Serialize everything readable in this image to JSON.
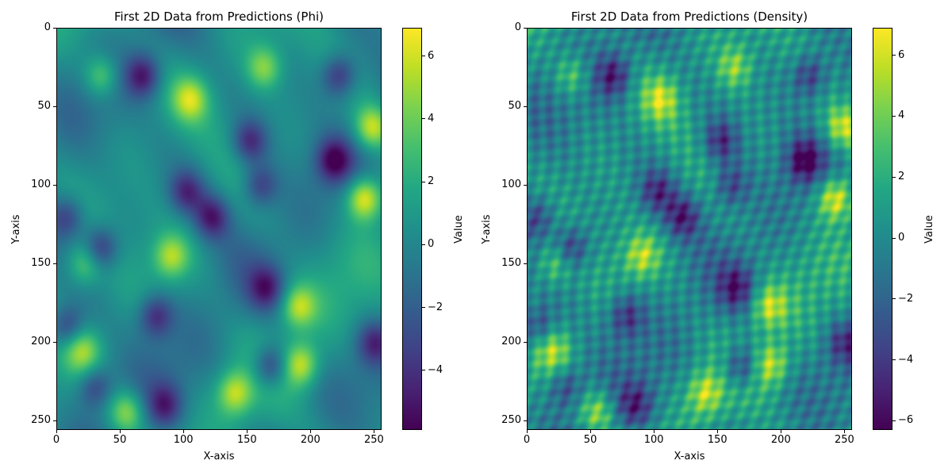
{
  "chart_data": [
    {
      "type": "heatmap",
      "title": "First 2D Data from Predictions (Phi)",
      "xlabel": "X-axis",
      "ylabel": "Y-axis",
      "xlim": [
        0,
        256
      ],
      "ylim": [
        256,
        0
      ],
      "xticks": [
        0,
        50,
        100,
        150,
        200,
        250
      ],
      "yticks": [
        0,
        50,
        100,
        150,
        200,
        250
      ],
      "colormap": "viridis",
      "colorbar": {
        "label": "Value",
        "range": [
          -5.9,
          6.9
        ],
        "ticks": [
          -4,
          -2,
          0,
          2,
          4,
          6
        ]
      },
      "grid": false,
      "texture": "smooth",
      "features": [
        {
          "x": 242,
          "y": 108,
          "value": 6.8
        },
        {
          "x": 248,
          "y": 63,
          "value": 5.5
        },
        {
          "x": 190,
          "y": 177,
          "value": 4.8
        },
        {
          "x": 105,
          "y": 45,
          "value": 4.5
        },
        {
          "x": 140,
          "y": 232,
          "value": 4.7
        },
        {
          "x": 192,
          "y": 214,
          "value": 5.2
        },
        {
          "x": 55,
          "y": 244,
          "value": 4.6
        },
        {
          "x": 90,
          "y": 145,
          "value": 4.3
        },
        {
          "x": 22,
          "y": 150,
          "value": 4.0
        },
        {
          "x": 163,
          "y": 25,
          "value": 4.0
        },
        {
          "x": 35,
          "y": 30,
          "value": 4.0
        },
        {
          "x": 20,
          "y": 205,
          "value": 3.8
        },
        {
          "x": 218,
          "y": 84,
          "value": -5.3
        },
        {
          "x": 122,
          "y": 120,
          "value": -4.8
        },
        {
          "x": 68,
          "y": 30,
          "value": -5.0
        },
        {
          "x": 222,
          "y": 30,
          "value": -4.7
        },
        {
          "x": 152,
          "y": 72,
          "value": -4.5
        },
        {
          "x": 168,
          "y": 215,
          "value": -5.0
        },
        {
          "x": 34,
          "y": 140,
          "value": -4.8
        },
        {
          "x": 78,
          "y": 183,
          "value": -4.5
        },
        {
          "x": 102,
          "y": 104,
          "value": -4.2
        },
        {
          "x": 160,
          "y": 100,
          "value": -4.0
        },
        {
          "x": 30,
          "y": 228,
          "value": -4.0
        },
        {
          "x": 8,
          "y": 190,
          "value": -4.2
        },
        {
          "x": 250,
          "y": 200,
          "value": -4.0
        },
        {
          "x": 165,
          "y": 165,
          "value": -4.0
        },
        {
          "x": 8,
          "y": 120,
          "value": -3.8
        },
        {
          "x": 85,
          "y": 240,
          "value": -4.0
        }
      ]
    },
    {
      "type": "heatmap",
      "title": "First 2D Data from Predictions (Density)",
      "xlabel": "X-axis",
      "ylabel": "Y-axis",
      "xlim": [
        0,
        256
      ],
      "ylim": [
        256,
        0
      ],
      "xticks": [
        0,
        50,
        100,
        150,
        200,
        250
      ],
      "yticks": [
        0,
        50,
        100,
        150,
        200,
        250
      ],
      "colormap": "viridis",
      "colorbar": {
        "label": "Value",
        "range": [
          -6.3,
          6.9
        ],
        "ticks": [
          -6,
          -4,
          -2,
          0,
          2,
          4,
          6
        ]
      },
      "grid": false,
      "texture": "streaky",
      "features": [
        {
          "x": 242,
          "y": 108,
          "value": 6.7
        },
        {
          "x": 248,
          "y": 63,
          "value": 5.6
        },
        {
          "x": 190,
          "y": 177,
          "value": 4.9
        },
        {
          "x": 105,
          "y": 45,
          "value": 4.4
        },
        {
          "x": 140,
          "y": 232,
          "value": 4.8
        },
        {
          "x": 192,
          "y": 214,
          "value": 5.0
        },
        {
          "x": 55,
          "y": 244,
          "value": 4.5
        },
        {
          "x": 90,
          "y": 145,
          "value": 4.4
        },
        {
          "x": 22,
          "y": 150,
          "value": 4.1
        },
        {
          "x": 163,
          "y": 25,
          "value": 4.0
        },
        {
          "x": 35,
          "y": 30,
          "value": 4.0
        },
        {
          "x": 20,
          "y": 205,
          "value": 4.0
        },
        {
          "x": 218,
          "y": 84,
          "value": -5.8
        },
        {
          "x": 122,
          "y": 120,
          "value": -5.0
        },
        {
          "x": 68,
          "y": 30,
          "value": -5.2
        },
        {
          "x": 222,
          "y": 30,
          "value": -4.9
        },
        {
          "x": 152,
          "y": 72,
          "value": -4.8
        },
        {
          "x": 168,
          "y": 215,
          "value": -5.3
        },
        {
          "x": 34,
          "y": 140,
          "value": -5.0
        },
        {
          "x": 78,
          "y": 183,
          "value": -4.6
        },
        {
          "x": 102,
          "y": 104,
          "value": -4.4
        },
        {
          "x": 160,
          "y": 100,
          "value": -4.2
        },
        {
          "x": 30,
          "y": 228,
          "value": -4.1
        },
        {
          "x": 8,
          "y": 190,
          "value": -4.3
        },
        {
          "x": 250,
          "y": 200,
          "value": -4.1
        },
        {
          "x": 165,
          "y": 165,
          "value": -4.2
        },
        {
          "x": 8,
          "y": 120,
          "value": -4.0
        },
        {
          "x": 85,
          "y": 240,
          "value": -4.1
        }
      ]
    }
  ]
}
